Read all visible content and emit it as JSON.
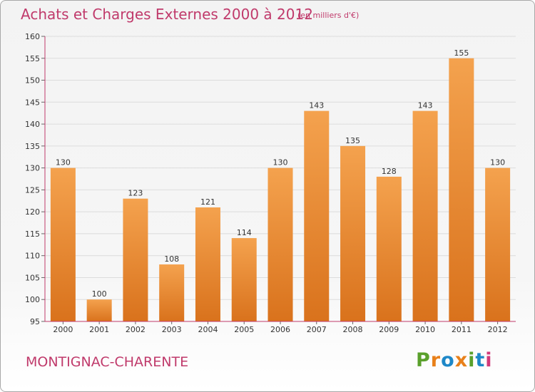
{
  "header": {
    "title": "Achats et Charges Externes 2000 à 2012",
    "unit": "(en milliers d'€)"
  },
  "footer": {
    "commune": "MONTIGNAC-CHARENTE",
    "logo": [
      "P",
      "r",
      "o",
      "x",
      "i",
      "t",
      "i"
    ]
  },
  "colors": {
    "title": "#c03a6b",
    "bar_light": "#f4a24e",
    "bar_dark": "#d9721c",
    "axis": "#c03a6b",
    "grid": "#dcdcdc",
    "logo": [
      "#5aa02c",
      "#e8801a",
      "#1e88c8",
      "#e8801a",
      "#5aa02c",
      "#1e88c8",
      "#d23a7a"
    ]
  },
  "chart_data": {
    "type": "bar",
    "title": "Achats et Charges Externes 2000 à 2012",
    "categories": [
      "2000",
      "2001",
      "2002",
      "2003",
      "2004",
      "2005",
      "2006",
      "2007",
      "2008",
      "2009",
      "2010",
      "2011",
      "2012"
    ],
    "values": [
      130,
      100,
      123,
      108,
      121,
      114,
      130,
      143,
      135,
      128,
      143,
      155,
      130
    ],
    "ylim": [
      95,
      160
    ],
    "yticks": [
      95,
      100,
      105,
      110,
      115,
      120,
      125,
      130,
      135,
      140,
      145,
      150,
      155,
      160
    ],
    "grid": true,
    "legend": "none"
  }
}
